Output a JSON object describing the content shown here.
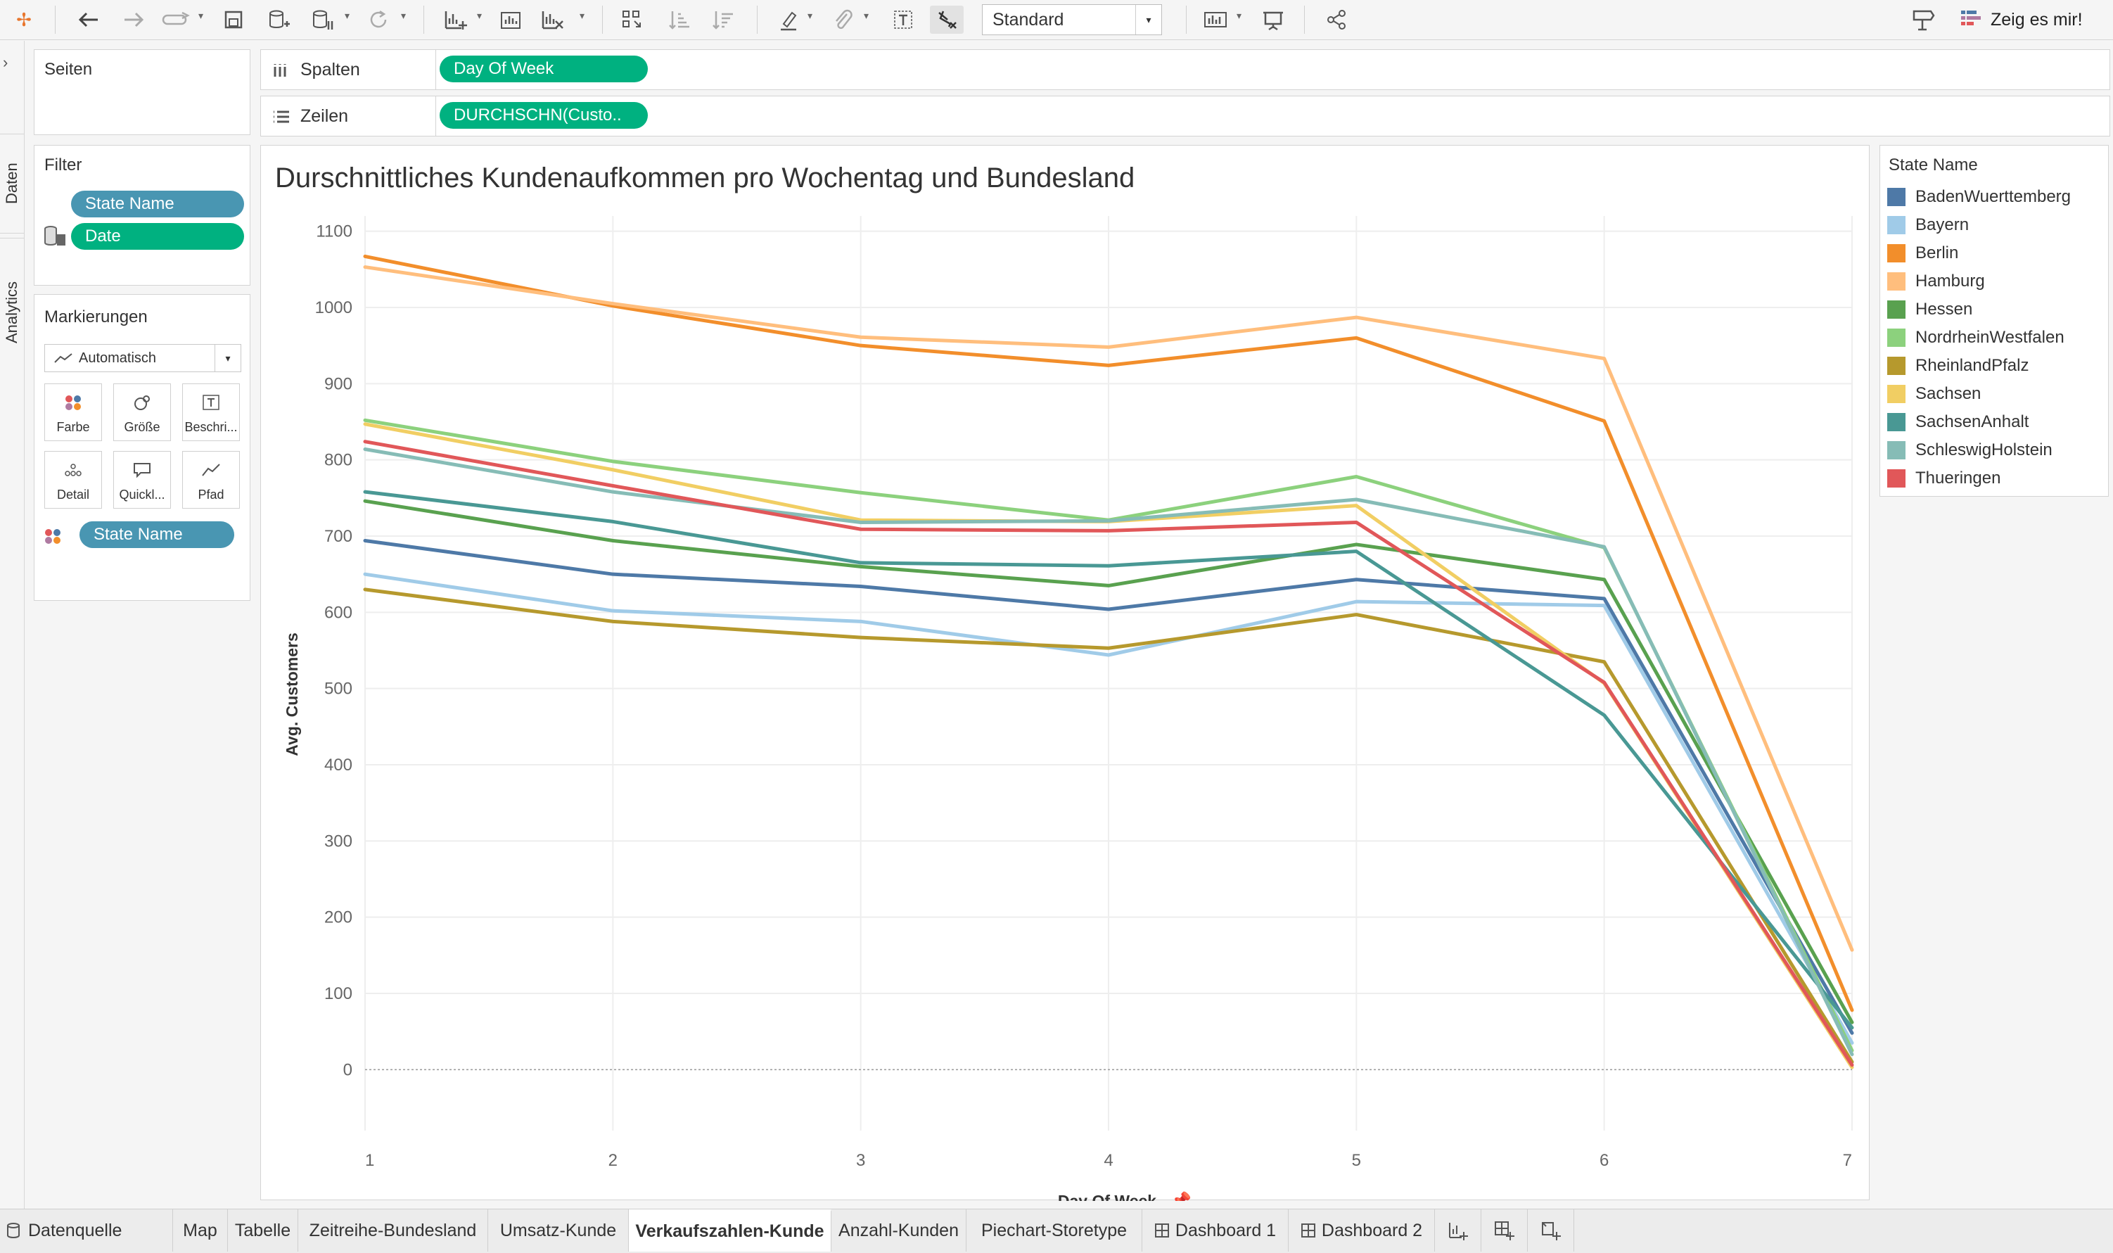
{
  "toolbar": {
    "view_mode": "Standard",
    "show_me_label": "Zeig es mir!",
    "icons": [
      "tableau-logo-icon",
      "undo-icon",
      "redo-icon",
      "replay-icon",
      "save-icon",
      "new-datasource-icon",
      "pause-autoupdate-icon",
      "refresh-icon",
      "new-worksheet-icon",
      "duplicate-sheet-icon",
      "clear-sheet-icon",
      "swap-axes-icon",
      "sort-ascending-icon",
      "sort-descending-icon",
      "highlight-icon",
      "group-icon",
      "label-icon",
      "fix-axes-icon",
      "show-cards-icon",
      "presentation-icon",
      "share-icon",
      "tooltip-icon"
    ]
  },
  "left_rail": {
    "data_tab": "Daten",
    "analytics_tab": "Analytics"
  },
  "pages_panel": {
    "title": "Seiten"
  },
  "filter_panel": {
    "title": "Filter",
    "pills": [
      "State Name",
      "Date"
    ]
  },
  "marks_panel": {
    "title": "Markierungen",
    "mark_type": "Automatisch",
    "buttons": [
      "Farbe",
      "Größe",
      "Beschri...",
      "Detail",
      "Quickl...",
      "Pfad"
    ],
    "color_pill": "State Name"
  },
  "shelves": {
    "columns_label": "Spalten",
    "columns_pill": "Day Of Week",
    "rows_label": "Zeilen",
    "rows_pill": "DURCHSCHN(Custo.."
  },
  "chart_data": {
    "type": "line",
    "title": "Durschnittliches Kundenaufkommen pro Wochentag und Bundesland",
    "xlabel": "Day Of Week",
    "ylabel": "Avg. Customers",
    "x": [
      1,
      2,
      3,
      4,
      5,
      6,
      7
    ],
    "xlim": [
      1,
      7
    ],
    "ylim": [
      -80,
      1120
    ],
    "yticks": [
      0,
      100,
      200,
      300,
      400,
      500,
      600,
      700,
      800,
      900,
      1000,
      1100
    ],
    "grid": true,
    "legend_position": "right",
    "legend_title": "State Name",
    "series": [
      {
        "name": "BadenWuerttemberg",
        "color": "#4e79a7",
        "values": [
          694,
          650,
          634,
          604,
          643,
          618,
          48
        ]
      },
      {
        "name": "Bayern",
        "color": "#a0cbe8",
        "values": [
          650,
          602,
          588,
          544,
          614,
          609,
          35
        ]
      },
      {
        "name": "Berlin",
        "color": "#f28e2b",
        "values": [
          1067,
          1002,
          950,
          924,
          960,
          851,
          78
        ]
      },
      {
        "name": "Hamburg",
        "color": "#ffbe7d",
        "values": [
          1053,
          1005,
          961,
          948,
          987,
          933,
          157
        ]
      },
      {
        "name": "Hessen",
        "color": "#59a14f",
        "values": [
          746,
          694,
          660,
          635,
          689,
          643,
          62
        ]
      },
      {
        "name": "NordrheinWestfalen",
        "color": "#8cd17d",
        "values": [
          852,
          798,
          757,
          721,
          778,
          685,
          25
        ]
      },
      {
        "name": "RheinlandPfalz",
        "color": "#b6992d",
        "values": [
          630,
          588,
          567,
          553,
          597,
          535,
          10
        ]
      },
      {
        "name": "Sachsen",
        "color": "#f1ce63",
        "values": [
          847,
          787,
          721,
          719,
          740,
          507,
          3
        ]
      },
      {
        "name": "SachsenAnhalt",
        "color": "#499894",
        "values": [
          758,
          719,
          665,
          661,
          680,
          465,
          55
        ]
      },
      {
        "name": "SchleswigHolstein",
        "color": "#86bcb6",
        "values": [
          814,
          758,
          718,
          720,
          748,
          686,
          20
        ]
      },
      {
        "name": "Thueringen",
        "color": "#e15759",
        "values": [
          824,
          766,
          709,
          707,
          718,
          508,
          6
        ]
      }
    ]
  },
  "tabs": [
    "Datenquelle",
    "Map",
    "Tabelle",
    "Zeitreihe-Bundesland",
    "Umsatz-Kunde",
    "Verkaufszahlen-Kunde",
    "Anzahl-Kunden",
    "Piechart-Storetype",
    "Dashboard 1",
    "Dashboard 2"
  ],
  "active_tab": "Verkaufszahlen-Kunde"
}
